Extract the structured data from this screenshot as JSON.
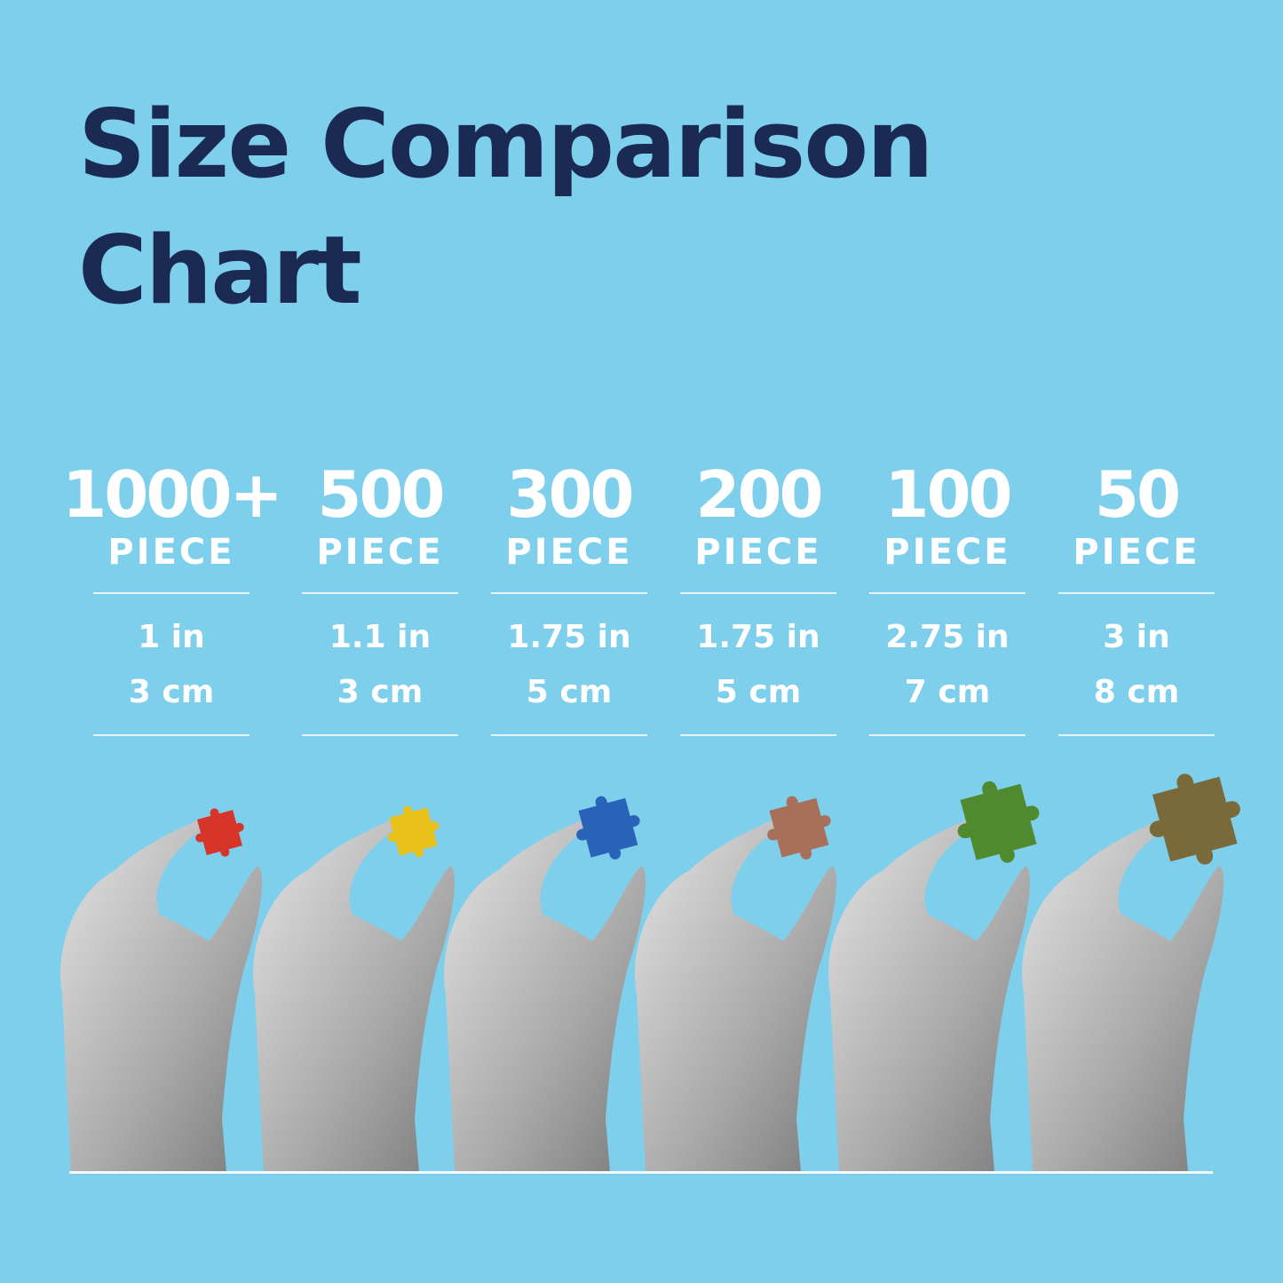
{
  "title": {
    "line1": "Size Comparison",
    "line2": "Chart"
  },
  "colors": {
    "background": "#7ecfec",
    "title": "#1a2a52",
    "text": "#ffffff"
  },
  "columns": [
    {
      "count": "1000+",
      "unit": "PIECE",
      "inches": "1 in",
      "cm": "3 cm",
      "piece_color": "#d8352a"
    },
    {
      "count": "500",
      "unit": "PIECE",
      "inches": "1.1 in",
      "cm": "3 cm",
      "piece_color": "#e8c21a"
    },
    {
      "count": "300",
      "unit": "PIECE",
      "inches": "1.75 in",
      "cm": "5 cm",
      "piece_color": "#2a64b8"
    },
    {
      "count": "200",
      "unit": "PIECE",
      "inches": "1.75 in",
      "cm": "5 cm",
      "piece_color": "#a8705a"
    },
    {
      "count": "100",
      "unit": "PIECE",
      "inches": "2.75 in",
      "cm": "7 cm",
      "piece_color": "#4f8a2e"
    },
    {
      "count": "50",
      "unit": "PIECE",
      "inches": "3 in",
      "cm": "8 cm",
      "piece_color": "#7a6a3a"
    }
  ]
}
